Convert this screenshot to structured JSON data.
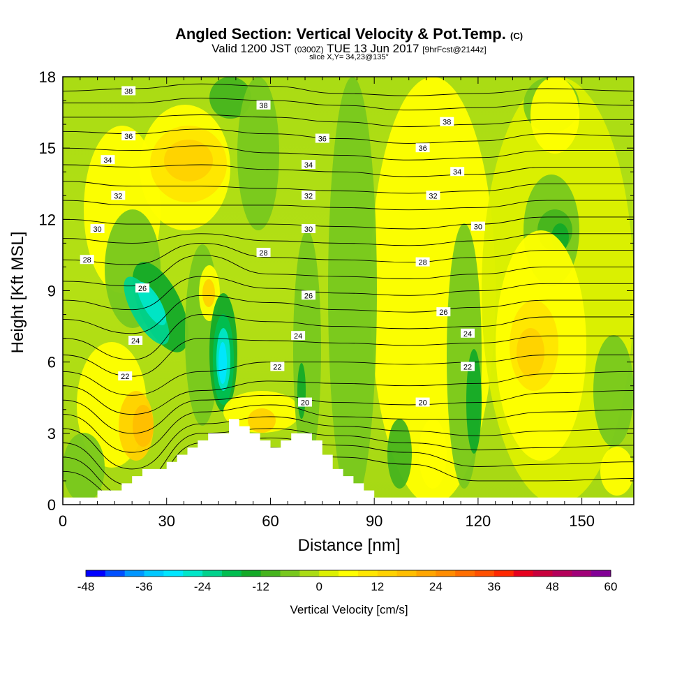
{
  "header": {
    "title": "Angled Section: Vertical Velocity & Pot.Temp.",
    "title_tag": "(C)",
    "subtitle_valid": "Valid 1200 JST",
    "subtitle_utc": "(0300Z)",
    "subtitle_date": "TUE 13 Jun 2017",
    "subtitle_fcst": "[9hrFcst@2144z]",
    "slice": "slice X,Y= 34,23@135°"
  },
  "chart_data": {
    "type": "heatmap",
    "xlabel": "Distance [nm]",
    "ylabel": "Height [Kft MSL]",
    "xlim": [
      0,
      165
    ],
    "ylim": [
      0,
      18
    ],
    "xticks": [
      0,
      30,
      60,
      90,
      120,
      150
    ],
    "yticks": [
      0,
      3,
      6,
      9,
      12,
      15,
      18
    ],
    "colorbar": {
      "label": "Vertical Velocity [cm/s]",
      "min": -48,
      "max": 60,
      "step": 4,
      "tick_labels": [
        -48,
        -36,
        -24,
        -12,
        0,
        12,
        24,
        36,
        48,
        60
      ],
      "colors": [
        "#0000ff",
        "#0050ff",
        "#0096ff",
        "#00c8ff",
        "#00e6ff",
        "#00e6c8",
        "#00d28c",
        "#00be50",
        "#14aa28",
        "#46b41e",
        "#78c81e",
        "#aadc14",
        "#dcf000",
        "#ffff00",
        "#ffe600",
        "#ffd200",
        "#ffbe00",
        "#ffa500",
        "#ff8c00",
        "#ff6e00",
        "#ff5000",
        "#ff2800",
        "#e6001e",
        "#c8003c",
        "#b4005a",
        "#a00078",
        "#820096"
      ]
    },
    "theta_contours": {
      "label": "Potential temperature (C)",
      "levels": [
        20,
        22,
        24,
        26,
        28,
        30,
        32,
        34,
        36,
        38
      ],
      "lines": [
        {
          "x": [
            0,
            20,
            40,
            60,
            80,
            100,
            120,
            140,
            165
          ],
          "y": [
            17.4,
            17.5,
            17.7,
            17.6,
            17.3,
            17.2,
            17.3,
            17.5,
            17.4
          ]
        },
        {
          "x": [
            0,
            20,
            40,
            60,
            80,
            100,
            120,
            140,
            165
          ],
          "y": [
            16.9,
            16.9,
            17.1,
            17.0,
            16.8,
            16.6,
            16.7,
            16.9,
            16.8
          ]
        },
        {
          "x": [
            0,
            20,
            40,
            60,
            80,
            100,
            120,
            140,
            165
          ],
          "y": [
            16.3,
            16.3,
            16.4,
            16.3,
            16.1,
            15.9,
            16.0,
            16.2,
            16.2
          ]
        },
        {
          "x": [
            0,
            20,
            40,
            60,
            80,
            100,
            120,
            140,
            165
          ],
          "y": [
            15.7,
            15.6,
            15.8,
            15.6,
            15.4,
            15.2,
            15.3,
            15.6,
            15.5
          ]
        },
        {
          "x": [
            0,
            20,
            40,
            60,
            80,
            100,
            120,
            140,
            165
          ],
          "y": [
            15.0,
            14.9,
            15.1,
            14.8,
            14.7,
            14.5,
            14.6,
            14.9,
            14.9
          ]
        },
        {
          "x": [
            0,
            20,
            40,
            60,
            80,
            100,
            120,
            140,
            165
          ],
          "y": [
            14.3,
            14.2,
            14.3,
            14.1,
            14.0,
            13.8,
            13.9,
            14.2,
            14.2
          ]
        },
        {
          "x": [
            0,
            20,
            40,
            60,
            80,
            100,
            120,
            140,
            165
          ],
          "y": [
            13.6,
            13.4,
            13.4,
            13.3,
            13.2,
            13.1,
            13.2,
            13.5,
            13.5
          ]
        },
        {
          "x": [
            0,
            20,
            40,
            60,
            80,
            100,
            120,
            140,
            165
          ],
          "y": [
            12.8,
            12.6,
            12.6,
            12.6,
            12.5,
            12.4,
            12.5,
            12.8,
            12.8
          ]
        },
        {
          "x": [
            0,
            20,
            40,
            60,
            80,
            100,
            120,
            140,
            165
          ],
          "y": [
            12.0,
            11.8,
            11.8,
            11.8,
            11.7,
            11.6,
            11.8,
            12.1,
            12.1
          ]
        },
        {
          "x": [
            0,
            20,
            40,
            60,
            80,
            100,
            120,
            140,
            165
          ],
          "y": [
            11.2,
            11.0,
            11.4,
            11.1,
            11.0,
            10.9,
            11.1,
            11.4,
            11.4
          ]
        },
        {
          "x": [
            0,
            20,
            40,
            60,
            80,
            100,
            120,
            140,
            165
          ],
          "y": [
            10.3,
            10.1,
            11.0,
            10.4,
            10.3,
            10.2,
            10.4,
            10.7,
            10.7
          ]
        },
        {
          "x": [
            0,
            20,
            40,
            60,
            80,
            100,
            120,
            140,
            165
          ],
          "y": [
            9.4,
            9.2,
            10.5,
            9.7,
            9.6,
            9.5,
            9.7,
            10.0,
            10.0
          ]
        },
        {
          "x": [
            0,
            20,
            40,
            60,
            80,
            100,
            120,
            140,
            165
          ],
          "y": [
            8.6,
            8.2,
            9.6,
            9.1,
            8.9,
            8.8,
            9.0,
            9.3,
            9.3
          ]
        },
        {
          "x": [
            0,
            20,
            40,
            60,
            80,
            100,
            120,
            140,
            165
          ],
          "y": [
            7.8,
            7.2,
            8.8,
            8.5,
            8.2,
            8.1,
            8.3,
            8.6,
            8.6
          ]
        },
        {
          "x": [
            0,
            20,
            40,
            60,
            80,
            100,
            120,
            140,
            165
          ],
          "y": [
            7.0,
            6.1,
            8.0,
            7.7,
            7.5,
            7.4,
            7.5,
            7.9,
            7.9
          ]
        },
        {
          "x": [
            0,
            20,
            40,
            60,
            80,
            100,
            120,
            140,
            165
          ],
          "y": [
            6.3,
            5.4,
            7.0,
            6.9,
            6.8,
            6.7,
            6.8,
            7.1,
            7.1
          ]
        },
        {
          "x": [
            0,
            20,
            40,
            60,
            80,
            100,
            120,
            140,
            165
          ],
          "y": [
            5.6,
            4.6,
            5.6,
            6.0,
            6.0,
            5.9,
            6.0,
            6.3,
            6.3
          ]
        },
        {
          "x": [
            0,
            20,
            40,
            60,
            80,
            100,
            120,
            140,
            165
          ],
          "y": [
            5.0,
            3.8,
            4.8,
            5.2,
            5.1,
            5.0,
            5.1,
            5.5,
            5.6
          ]
        },
        {
          "x": [
            0,
            20,
            40,
            60,
            80,
            100,
            120,
            140,
            165
          ],
          "y": [
            4.4,
            3.0,
            4.4,
            4.6,
            4.3,
            4.2,
            4.3,
            4.7,
            4.8
          ]
        },
        {
          "x": [
            0,
            20,
            40,
            60,
            80,
            100,
            120,
            140,
            165
          ],
          "y": [
            3.8,
            2.2,
            3.9,
            4.2,
            3.7,
            3.6,
            3.6,
            3.9,
            4.0
          ]
        },
        {
          "x": [
            0,
            20,
            40,
            60,
            80,
            100,
            120,
            140,
            165
          ],
          "y": [
            3.2,
            1.5,
            3.4,
            3.7,
            3.3,
            3.1,
            2.9,
            3.1,
            3.2
          ]
        },
        {
          "x": [
            0,
            20,
            40,
            60,
            80,
            100,
            120,
            140,
            165
          ],
          "y": [
            2.6,
            0.8,
            3.0,
            3.2,
            2.9,
            2.6,
            2.3,
            2.4,
            2.5
          ]
        },
        {
          "x": [
            0,
            20,
            40,
            60,
            80,
            100,
            120,
            140,
            165
          ],
          "y": [
            2.0,
            0.3,
            2.6,
            2.8,
            2.5,
            2.2,
            1.6,
            1.7,
            1.8
          ]
        },
        {
          "x": [
            0,
            20,
            40,
            60,
            80,
            100,
            120,
            140,
            165
          ],
          "y": [
            1.4,
            0.1,
            2.2,
            2.4,
            2.0,
            1.7,
            1.0,
            1.0,
            1.1
          ]
        }
      ],
      "labels": [
        {
          "text": "38",
          "x": 19,
          "y": 17.4
        },
        {
          "text": "38",
          "x": 58,
          "y": 16.8
        },
        {
          "text": "38",
          "x": 111,
          "y": 16.1
        },
        {
          "text": "36",
          "x": 19,
          "y": 15.5
        },
        {
          "text": "36",
          "x": 75,
          "y": 15.4
        },
        {
          "text": "36",
          "x": 104,
          "y": 15.0
        },
        {
          "text": "34",
          "x": 13,
          "y": 14.5
        },
        {
          "text": "34",
          "x": 71,
          "y": 14.3
        },
        {
          "text": "34",
          "x": 114,
          "y": 14.0
        },
        {
          "text": "32",
          "x": 16,
          "y": 13.0
        },
        {
          "text": "32",
          "x": 71,
          "y": 13.0
        },
        {
          "text": "32",
          "x": 107,
          "y": 13.0
        },
        {
          "text": "30",
          "x": 10,
          "y": 11.6
        },
        {
          "text": "30",
          "x": 71,
          "y": 11.6
        },
        {
          "text": "30",
          "x": 120,
          "y": 11.7
        },
        {
          "text": "28",
          "x": 7,
          "y": 10.3
        },
        {
          "text": "28",
          "x": 58,
          "y": 10.6
        },
        {
          "text": "28",
          "x": 104,
          "y": 10.2
        },
        {
          "text": "26",
          "x": 23,
          "y": 9.1
        },
        {
          "text": "26",
          "x": 71,
          "y": 8.8
        },
        {
          "text": "26",
          "x": 110,
          "y": 8.1
        },
        {
          "text": "24",
          "x": 21,
          "y": 6.9
        },
        {
          "text": "24",
          "x": 68,
          "y": 7.1
        },
        {
          "text": "24",
          "x": 117,
          "y": 7.2
        },
        {
          "text": "22",
          "x": 18,
          "y": 5.4
        },
        {
          "text": "22",
          "x": 62,
          "y": 5.8
        },
        {
          "text": "22",
          "x": 117,
          "y": 5.8
        },
        {
          "text": "20",
          "x": 70,
          "y": 4.3
        },
        {
          "text": "20",
          "x": 104,
          "y": 4.3
        }
      ]
    },
    "terrain": {
      "x": [
        0,
        10,
        10,
        17,
        17,
        20,
        20,
        23,
        23,
        30,
        30,
        33,
        33,
        36,
        36,
        39,
        39,
        42,
        42,
        48,
        48,
        51,
        51,
        54,
        54,
        57,
        57,
        60,
        60,
        63,
        63,
        66,
        66,
        72,
        72,
        75,
        75,
        78,
        78,
        81,
        81,
        84,
        84,
        87,
        87,
        90,
        90,
        165
      ],
      "y": [
        0.3,
        0.3,
        0.6,
        0.6,
        0.9,
        0.9,
        1.2,
        1.2,
        1.5,
        1.5,
        1.8,
        1.8,
        2.1,
        2.1,
        2.4,
        2.4,
        2.7,
        2.7,
        3.0,
        3.0,
        3.6,
        3.6,
        3.3,
        3.3,
        3.0,
        3.0,
        2.7,
        2.7,
        2.4,
        2.4,
        2.7,
        2.7,
        3.0,
        3.0,
        2.7,
        2.7,
        2.1,
        2.1,
        1.5,
        1.5,
        1.2,
        1.2,
        0.9,
        0.9,
        0.6,
        0.6,
        0.3,
        0.3
      ]
    }
  }
}
